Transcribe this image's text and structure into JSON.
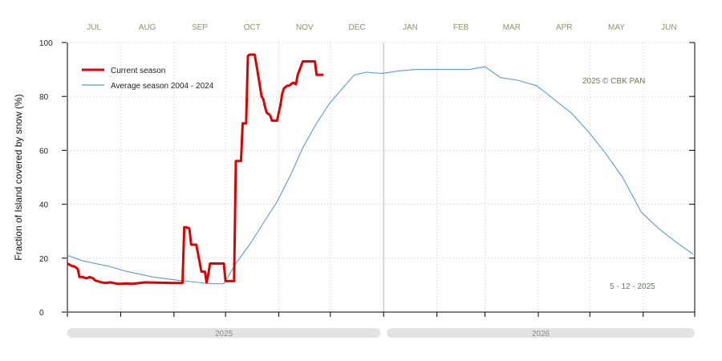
{
  "chart_data": {
    "type": "line",
    "ylabel": "Fraction of  Island  covered by snow (%)",
    "ylim": [
      0,
      100
    ],
    "yticks": [
      0,
      20,
      40,
      60,
      80,
      100
    ],
    "months": [
      "JUL",
      "AUG",
      "SEP",
      "OCT",
      "NOV",
      "DEC",
      "JAN",
      "FEB",
      "MAR",
      "APR",
      "MAY",
      "JUN"
    ],
    "years": [
      "2025",
      "2026"
    ],
    "copyright": "2025  © CBK PAN",
    "date_stamp": "5 - 12 - 2025",
    "legend_position": "top-left",
    "grid": true,
    "series": [
      {
        "name": "Current season",
        "color": "#e00000",
        "x": [
          "2025-07-01",
          "2025-07-04",
          "2025-07-05",
          "2025-07-07",
          "2025-07-08",
          "2025-07-10",
          "2025-07-12",
          "2025-07-14",
          "2025-07-16",
          "2025-07-17",
          "2025-07-21",
          "2025-07-23",
          "2025-07-26",
          "2025-07-30",
          "2025-08-01",
          "2025-08-04",
          "2025-08-08",
          "2025-08-15",
          "2025-09-01",
          "2025-09-06",
          "2025-09-07",
          "2025-09-08",
          "2025-09-10",
          "2025-09-11",
          "2025-09-13",
          "2025-09-14",
          "2025-09-17",
          "2025-09-18",
          "2025-09-19",
          "2025-09-20",
          "2025-09-21",
          "2025-09-22",
          "2025-09-25",
          "2025-09-30",
          "2025-10-01",
          "2025-10-03",
          "2025-10-04",
          "2025-10-06",
          "2025-10-07",
          "2025-10-08",
          "2025-10-09",
          "2025-10-10",
          "2025-10-11",
          "2025-10-12",
          "2025-10-13",
          "2025-10-14",
          "2025-10-15",
          "2025-10-17",
          "2025-10-18",
          "2025-10-20",
          "2025-10-22",
          "2025-10-23",
          "2025-10-24",
          "2025-10-25",
          "2025-10-27",
          "2025-10-28",
          "2025-10-31",
          "2025-11-01",
          "2025-11-02",
          "2025-11-03",
          "2025-11-04",
          "2025-11-06",
          "2025-11-07",
          "2025-11-09",
          "2025-11-10",
          "2025-11-11",
          "2025-11-12",
          "2025-11-15",
          "2025-11-16",
          "2025-11-18",
          "2025-11-20",
          "2025-11-22",
          "2025-11-23",
          "2025-11-24",
          "2025-11-25",
          "2025-11-27"
        ],
        "y": [
          18,
          17,
          17,
          16,
          13,
          13,
          12.5,
          13,
          12.5,
          11.8,
          11,
          10.8,
          11,
          10.5,
          10.5,
          10.6,
          10.5,
          11,
          10.8,
          10.8,
          31.5,
          31.5,
          31,
          25,
          25,
          25,
          15,
          15,
          15,
          11,
          14,
          18,
          18,
          18,
          11.5,
          11.5,
          11.5,
          11.5,
          56,
          56,
          56,
          56,
          70,
          70,
          70,
          95,
          95.5,
          95.5,
          95.5,
          88,
          80,
          79,
          76,
          74,
          73,
          71,
          71,
          74,
          77,
          81,
          83,
          84,
          84,
          85,
          85,
          84.5,
          88,
          93,
          93,
          93,
          93,
          93,
          88,
          88,
          88,
          88
        ]
      },
      {
        "name": "Average season 2004 - 2024",
        "color": "#5b9bd5",
        "x": [
          "2025-07-01",
          "2025-07-10",
          "2025-07-25",
          "2025-08-05",
          "2025-08-20",
          "2025-09-01",
          "2025-09-08",
          "2025-09-15",
          "2025-09-22",
          "2025-09-30",
          "2025-10-07",
          "2025-10-15",
          "2025-10-22",
          "2025-10-31",
          "2025-11-08",
          "2025-11-15",
          "2025-11-22",
          "2025-11-30",
          "2025-12-08",
          "2025-12-15",
          "2025-12-22",
          "2025-12-31",
          "2026-01-10",
          "2026-01-20",
          "2026-02-01",
          "2026-02-10",
          "2026-02-20",
          "2026-03-01",
          "2026-03-10",
          "2026-03-20",
          "2026-03-31",
          "2026-04-10",
          "2026-04-20",
          "2026-04-30",
          "2026-05-10",
          "2026-05-20",
          "2026-05-31",
          "2026-06-10",
          "2026-06-20",
          "2026-06-30"
        ],
        "y": [
          21,
          19,
          17,
          15,
          13,
          12,
          11.5,
          11,
          10.5,
          10.5,
          18,
          25,
          32,
          41,
          51,
          61,
          69,
          77,
          83,
          88,
          89,
          88.5,
          89.5,
          90,
          90,
          90,
          90,
          91,
          87,
          86,
          84,
          79,
          74,
          67,
          59,
          50,
          37,
          31,
          26,
          21.5
        ]
      }
    ]
  }
}
